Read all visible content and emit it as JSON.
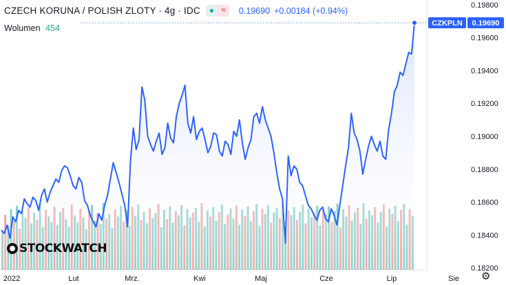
{
  "header": {
    "title": "CZECH KORUNA / POLISH ZLOTY · 4g · IDC",
    "price": "0.19690",
    "change": "+0.00184 (+0.94%)",
    "status_dot_icon": "dot-icon",
    "waves_icon": "waves-icon"
  },
  "volume": {
    "label": "Wolumen",
    "value": "454"
  },
  "logo": {
    "text": "STOCKWATCH"
  },
  "settings_icon": "gear-icon",
  "colors": {
    "line": "#2962ff",
    "area_top": "#dbe3ff",
    "vol_up": "#26a69a",
    "vol_down": "#ef5350",
    "axis_text": "#131722",
    "tag_bg": "#2962ff"
  },
  "chart_data": {
    "type": "area",
    "symbol": "CZKPLN",
    "last_price_label": "0.19690",
    "x_ticks": [
      "2022",
      "Lut",
      "Mrz.",
      "Kwi",
      "Maj",
      "Cze",
      "Lip",
      "Sie"
    ],
    "y_ticks": [
      "0.19800",
      "0.19600",
      "0.19400",
      "0.19200",
      "0.19000",
      "0.18800",
      "0.18600",
      "0.18400",
      "0.18200"
    ],
    "ylim": [
      0.1818,
      0.1982
    ],
    "series": [
      {
        "values": [
          0.1843,
          0.1841,
          0.1846,
          0.1838,
          0.1851,
          0.1848,
          0.1855,
          0.1853,
          0.1862,
          0.1859,
          0.1857,
          0.1863,
          0.1861,
          0.1855,
          0.1864,
          0.1868,
          0.186,
          0.1866,
          0.187,
          0.1874,
          0.1872,
          0.1879,
          0.1882,
          0.1881,
          0.1876,
          0.187,
          0.1868,
          0.1875,
          0.1872,
          0.1861,
          0.1858,
          0.1852,
          0.1848,
          0.1845,
          0.1853,
          0.1849,
          0.1858,
          0.1864,
          0.1874,
          0.1884,
          0.1878,
          0.1872,
          0.1865,
          0.1858,
          0.1845,
          0.1885,
          0.1905,
          0.1892,
          0.1898,
          0.193,
          0.1922,
          0.19,
          0.1895,
          0.1891,
          0.1897,
          0.1902,
          0.1889,
          0.1893,
          0.1908,
          0.1899,
          0.1896,
          0.1912,
          0.192,
          0.1925,
          0.1931,
          0.1908,
          0.1902,
          0.1912,
          0.1898,
          0.1903,
          0.1905,
          0.1898,
          0.189,
          0.1894,
          0.1902,
          0.1901,
          0.1891,
          0.1888,
          0.1897,
          0.1895,
          0.1889,
          0.1903,
          0.19,
          0.191,
          0.1896,
          0.1886,
          0.1893,
          0.1898,
          0.1912,
          0.1914,
          0.1908,
          0.1918,
          0.191,
          0.1905,
          0.19,
          0.189,
          0.1878,
          0.1868,
          0.1862,
          0.1835,
          0.1888,
          0.1876,
          0.1882,
          0.188,
          0.1872,
          0.187,
          0.1864,
          0.1858,
          0.1856,
          0.1852,
          0.1849,
          0.1855,
          0.1857,
          0.185,
          0.1848,
          0.1856,
          0.1852,
          0.1846,
          0.1858,
          0.187,
          0.1882,
          0.1893,
          0.1914,
          0.1902,
          0.1898,
          0.1891,
          0.1877,
          0.1886,
          0.1894,
          0.19,
          0.1895,
          0.1891,
          0.1897,
          0.1888,
          0.1886,
          0.1904,
          0.1914,
          0.1927,
          0.1931,
          0.1939,
          0.1937,
          0.1944,
          0.1951,
          0.195,
          0.1969
        ]
      }
    ],
    "volume": [
      {
        "v": 0.58,
        "up": true
      },
      {
        "v": 0.82,
        "up": false
      },
      {
        "v": 0.66,
        "up": true
      },
      {
        "v": 0.9,
        "up": true
      },
      {
        "v": 0.72,
        "up": false
      },
      {
        "v": 0.95,
        "up": true
      },
      {
        "v": 0.61,
        "up": false
      },
      {
        "v": 0.88,
        "up": true
      },
      {
        "v": 0.77,
        "up": true
      },
      {
        "v": 0.93,
        "up": false
      },
      {
        "v": 0.69,
        "up": true
      },
      {
        "v": 0.85,
        "up": true
      },
      {
        "v": 0.74,
        "up": false
      },
      {
        "v": 0.98,
        "up": true
      },
      {
        "v": 0.63,
        "up": true
      },
      {
        "v": 0.89,
        "up": false
      },
      {
        "v": 0.8,
        "up": true
      },
      {
        "v": 0.71,
        "up": true
      },
      {
        "v": 0.94,
        "up": false
      },
      {
        "v": 0.67,
        "up": true
      },
      {
        "v": 0.86,
        "up": true
      },
      {
        "v": 0.92,
        "up": false
      },
      {
        "v": 0.75,
        "up": true
      },
      {
        "v": 0.64,
        "up": true
      },
      {
        "v": 0.97,
        "up": false
      },
      {
        "v": 0.81,
        "up": true
      },
      {
        "v": 0.7,
        "up": true
      },
      {
        "v": 0.91,
        "up": false
      },
      {
        "v": 0.78,
        "up": true
      },
      {
        "v": 0.6,
        "up": true
      },
      {
        "v": 0.87,
        "up": false
      },
      {
        "v": 0.96,
        "up": true
      },
      {
        "v": 0.73,
        "up": true
      },
      {
        "v": 0.84,
        "up": false
      },
      {
        "v": 0.68,
        "up": true
      },
      {
        "v": 0.99,
        "up": true
      },
      {
        "v": 0.76,
        "up": false
      },
      {
        "v": 0.83,
        "up": true
      },
      {
        "v": 0.62,
        "up": true
      },
      {
        "v": 0.9,
        "up": false
      },
      {
        "v": 0.79,
        "up": true
      },
      {
        "v": 0.95,
        "up": true
      },
      {
        "v": 0.72,
        "up": false
      },
      {
        "v": 0.88,
        "up": true
      },
      {
        "v": 0.65,
        "up": true
      },
      {
        "v": 0.93,
        "up": false
      },
      {
        "v": 0.8,
        "up": true
      },
      {
        "v": 0.97,
        "up": true
      },
      {
        "v": 0.74,
        "up": false
      },
      {
        "v": 0.86,
        "up": true
      },
      {
        "v": 0.69,
        "up": true
      },
      {
        "v": 0.91,
        "up": false
      },
      {
        "v": 0.77,
        "up": true
      },
      {
        "v": 0.84,
        "up": true
      },
      {
        "v": 0.98,
        "up": false
      },
      {
        "v": 0.63,
        "up": true
      },
      {
        "v": 0.89,
        "up": true
      },
      {
        "v": 0.75,
        "up": false
      },
      {
        "v": 0.94,
        "up": true
      },
      {
        "v": 0.7,
        "up": true
      },
      {
        "v": 0.87,
        "up": false
      },
      {
        "v": 0.81,
        "up": true
      },
      {
        "v": 0.96,
        "up": true
      },
      {
        "v": 0.66,
        "up": false
      },
      {
        "v": 0.9,
        "up": true
      },
      {
        "v": 0.78,
        "up": true
      },
      {
        "v": 0.85,
        "up": false
      },
      {
        "v": 0.92,
        "up": true
      },
      {
        "v": 0.71,
        "up": true
      },
      {
        "v": 0.99,
        "up": false
      },
      {
        "v": 0.64,
        "up": true
      },
      {
        "v": 0.88,
        "up": true
      },
      {
        "v": 0.79,
        "up": false
      },
      {
        "v": 0.93,
        "up": true
      },
      {
        "v": 0.73,
        "up": true
      },
      {
        "v": 0.86,
        "up": false
      },
      {
        "v": 0.97,
        "up": true
      },
      {
        "v": 0.68,
        "up": true
      },
      {
        "v": 0.82,
        "up": false
      },
      {
        "v": 0.91,
        "up": true
      },
      {
        "v": 0.76,
        "up": true
      },
      {
        "v": 0.95,
        "up": false
      },
      {
        "v": 0.67,
        "up": true
      },
      {
        "v": 0.89,
        "up": true
      },
      {
        "v": 0.8,
        "up": false
      },
      {
        "v": 0.94,
        "up": true
      },
      {
        "v": 0.72,
        "up": true
      },
      {
        "v": 0.87,
        "up": false
      },
      {
        "v": 0.98,
        "up": true
      },
      {
        "v": 0.65,
        "up": true
      },
      {
        "v": 0.9,
        "up": false
      },
      {
        "v": 0.83,
        "up": true
      },
      {
        "v": 0.96,
        "up": true
      },
      {
        "v": 0.7,
        "up": false
      },
      {
        "v": 0.85,
        "up": true
      },
      {
        "v": 0.92,
        "up": true
      },
      {
        "v": 0.77,
        "up": false
      },
      {
        "v": 0.99,
        "up": true
      },
      {
        "v": 0.62,
        "up": true
      },
      {
        "v": 0.88,
        "up": false
      },
      {
        "v": 0.81,
        "up": true
      },
      {
        "v": 0.93,
        "up": true
      },
      {
        "v": 0.74,
        "up": false
      },
      {
        "v": 0.86,
        "up": true
      },
      {
        "v": 0.97,
        "up": true
      },
      {
        "v": 0.69,
        "up": false
      },
      {
        "v": 0.91,
        "up": true
      },
      {
        "v": 0.78,
        "up": true
      },
      {
        "v": 0.84,
        "up": false
      },
      {
        "v": 0.95,
        "up": true
      },
      {
        "v": 0.66,
        "up": true
      },
      {
        "v": 0.89,
        "up": false
      },
      {
        "v": 0.82,
        "up": true
      },
      {
        "v": 0.94,
        "up": true
      },
      {
        "v": 0.71,
        "up": false
      },
      {
        "v": 0.87,
        "up": true
      },
      {
        "v": 0.98,
        "up": true
      },
      {
        "v": 0.63,
        "up": false
      },
      {
        "v": 0.9,
        "up": true
      },
      {
        "v": 0.79,
        "up": true
      },
      {
        "v": 0.96,
        "up": false
      },
      {
        "v": 0.73,
        "up": true
      },
      {
        "v": 0.85,
        "up": true
      },
      {
        "v": 0.92,
        "up": false
      },
      {
        "v": 0.68,
        "up": true
      },
      {
        "v": 0.99,
        "up": true
      },
      {
        "v": 0.76,
        "up": false
      },
      {
        "v": 0.88,
        "up": true
      },
      {
        "v": 0.81,
        "up": true
      },
      {
        "v": 0.93,
        "up": false
      },
      {
        "v": 0.7,
        "up": true
      },
      {
        "v": 0.86,
        "up": true
      },
      {
        "v": 0.97,
        "up": false
      },
      {
        "v": 0.64,
        "up": true
      },
      {
        "v": 0.91,
        "up": true
      },
      {
        "v": 0.83,
        "up": false
      },
      {
        "v": 0.95,
        "up": true
      },
      {
        "v": 0.72,
        "up": true
      },
      {
        "v": 0.89,
        "up": false
      },
      {
        "v": 0.98,
        "up": true
      },
      {
        "v": 0.67,
        "up": true
      },
      {
        "v": 0.9,
        "up": false
      },
      {
        "v": 0.8,
        "up": true
      }
    ]
  }
}
